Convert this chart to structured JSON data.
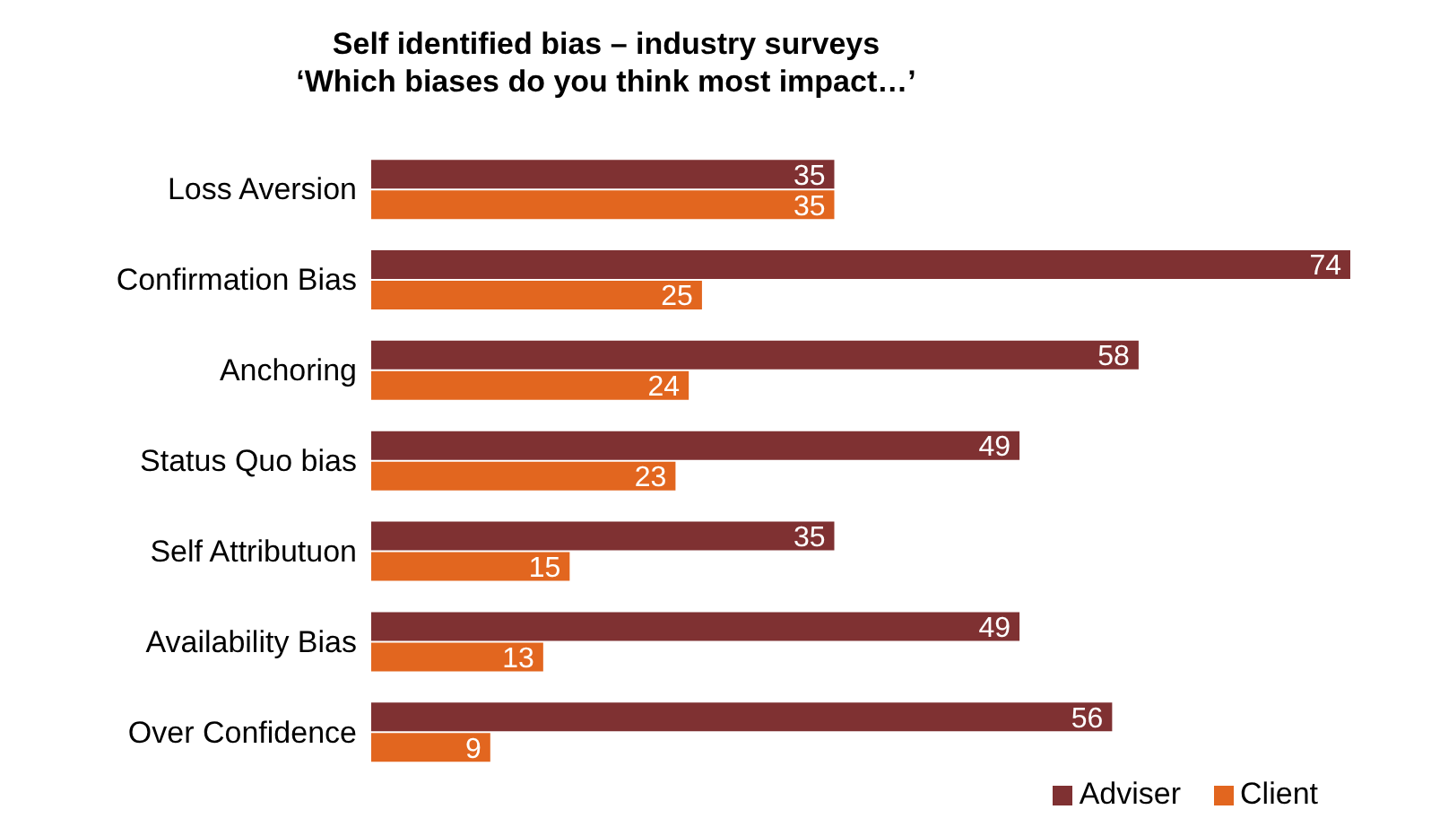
{
  "chart_data": {
    "type": "bar",
    "orientation": "horizontal",
    "title": "Self identified bias – industry surveys",
    "subtitle": "‘Which biases do you think most impact…’",
    "categories": [
      "Loss Aversion",
      "Confirmation Bias",
      "Anchoring",
      "Status Quo bias",
      "Self Attributuon",
      "Availability Bias",
      "Over Confidence"
    ],
    "series": [
      {
        "name": "Adviser",
        "color": "#7f3132",
        "values": [
          35,
          74,
          58,
          49,
          35,
          49,
          56
        ]
      },
      {
        "name": "Client",
        "color": "#e2661f",
        "values": [
          35,
          25,
          24,
          23,
          15,
          13,
          9
        ]
      }
    ],
    "data_labels": true,
    "legend": "bottom right",
    "grid": false
  }
}
